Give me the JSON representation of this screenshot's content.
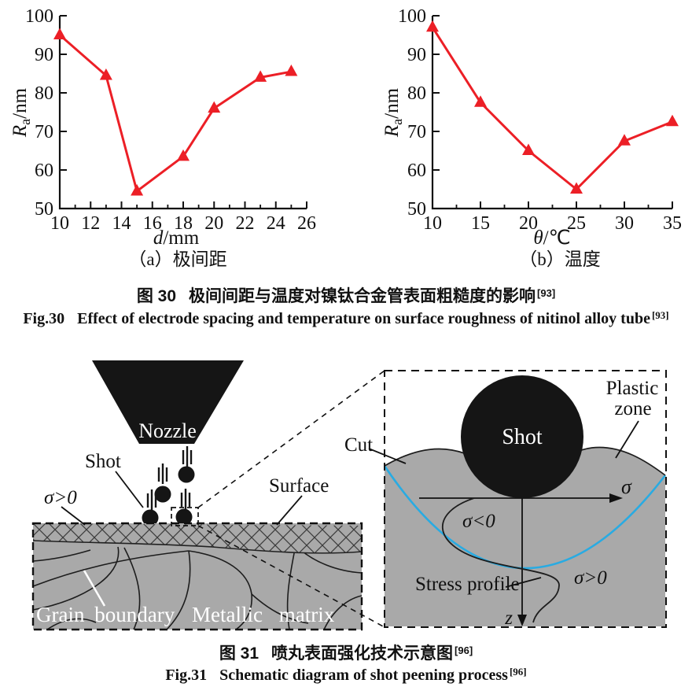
{
  "figure30": {
    "caption_cn": {
      "label": "图 30",
      "text": "极间间距与温度对镍钛合金管表面粗糙度的影响",
      "ref": "[93]"
    },
    "caption_en": {
      "label": "Fig.30",
      "text": "Effect of electrode spacing and temperature on surface roughness of nitinol alloy tube",
      "ref": "[93]"
    }
  },
  "figure31": {
    "caption_cn": {
      "label": "图 31",
      "text": "喷丸表面强化技术示意图",
      "ref": "[96]"
    },
    "caption_en": {
      "label": "Fig.31",
      "text": "Schematic diagram of shot peening process",
      "ref": "[96]"
    },
    "labels": {
      "nozzle": "Nozzle",
      "shot": "Shot",
      "sigma_gt0_left": "σ>0",
      "surface": "Surface",
      "grain_boundary": "Grain  boundary",
      "metallic_matrix": "Metallic  matrix",
      "cut": "Cut",
      "shot_inset": "Shot",
      "plastic_line1": "Plastic",
      "plastic_line2": "zone",
      "sigma": "σ",
      "sigma_lt0": "σ<0",
      "sigma_gt0": "σ>0",
      "stress_profile": "Stress profile",
      "z_axis": "z"
    },
    "colors": {
      "matrix_gray": "#a9a9a9",
      "plastic_blue": "#29abe2",
      "ink": "#151515"
    }
  },
  "chart_data": [
    {
      "type": "line",
      "x": [
        10,
        13,
        15,
        18,
        20,
        23,
        25
      ],
      "y": [
        95,
        84.5,
        54.5,
        63.5,
        76,
        84,
        85.5
      ],
      "xlabel_var": "d",
      "xlabel_unit": "/mm",
      "ylabel_var": "R",
      "ylabel_sub": "a",
      "ylabel_unit": "/nm",
      "xlim": [
        10,
        26
      ],
      "ylim": [
        50,
        100
      ],
      "xticks": [
        10,
        12,
        14,
        16,
        18,
        20,
        22,
        24,
        26
      ],
      "xminor": [
        11,
        13,
        15,
        17,
        19,
        21,
        23,
        25
      ],
      "yticks": [
        50,
        60,
        70,
        80,
        90,
        100
      ],
      "line_color": "#ec1f26",
      "marker": "triangle-up",
      "subcaption": "（a）极间距"
    },
    {
      "type": "line",
      "x": [
        10,
        15,
        20,
        25,
        30,
        35
      ],
      "y": [
        97,
        77.5,
        65,
        55,
        67.5,
        72.5
      ],
      "xlabel_var": "θ",
      "xlabel_unit": "/℃",
      "ylabel_var": "R",
      "ylabel_sub": "a",
      "ylabel_unit": "/nm",
      "xlim": [
        10,
        35
      ],
      "ylim": [
        50,
        100
      ],
      "xticks": [
        10,
        15,
        20,
        25,
        30,
        35
      ],
      "xminor": [
        12.5,
        17.5,
        22.5,
        27.5,
        32.5
      ],
      "yticks": [
        50,
        60,
        70,
        80,
        90,
        100
      ],
      "line_color": "#ec1f26",
      "marker": "triangle-up",
      "subcaption": "（b）温度"
    }
  ]
}
